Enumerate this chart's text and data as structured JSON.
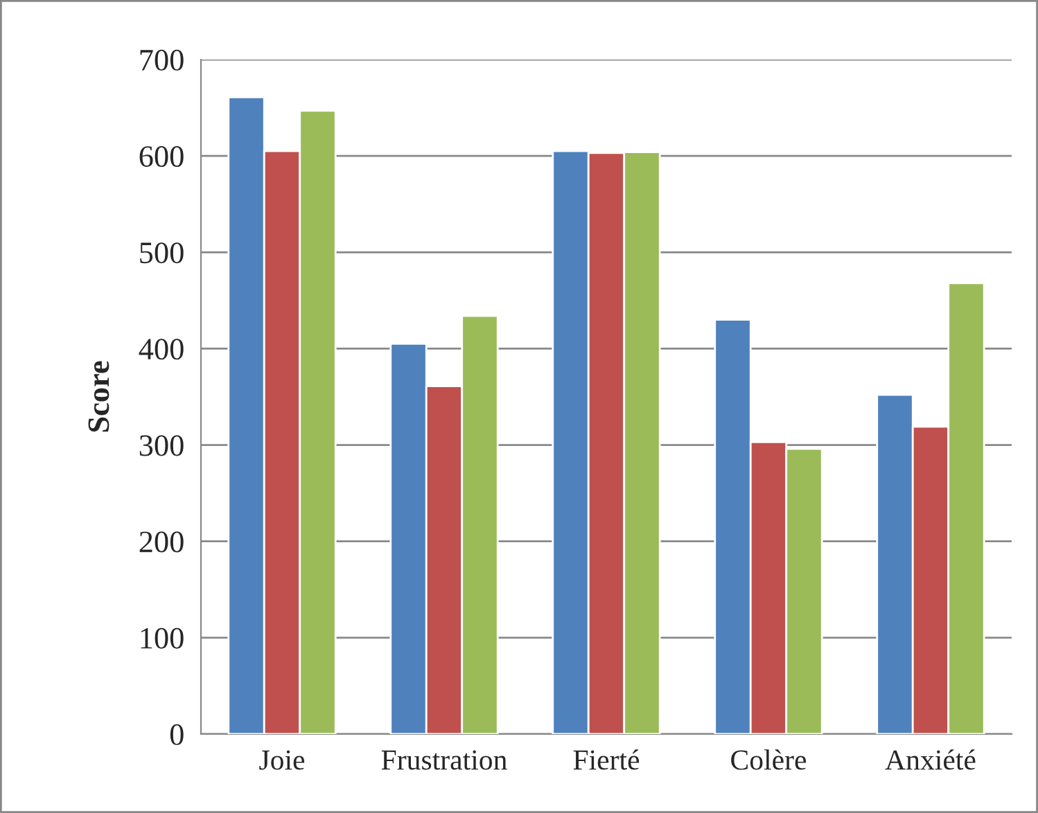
{
  "chart_data": {
    "type": "bar",
    "ylabel": "Score",
    "categories": [
      "Joie",
      "Frustration",
      "Fierté",
      "Colère",
      "Anxiété"
    ],
    "series": [
      {
        "color": "#4f81bd",
        "values": [
          661,
          405,
          605,
          430,
          352
        ]
      },
      {
        "color": "#c0504d",
        "values": [
          605,
          361,
          603,
          303,
          319
        ]
      },
      {
        "color": "#9bbb59",
        "values": [
          647,
          434,
          604,
          296,
          468
        ]
      }
    ],
    "ylim": [
      0,
      700
    ],
    "yticks": [
      0,
      100,
      200,
      300,
      400,
      500,
      600,
      700
    ],
    "grid": "y",
    "legend": false
  }
}
